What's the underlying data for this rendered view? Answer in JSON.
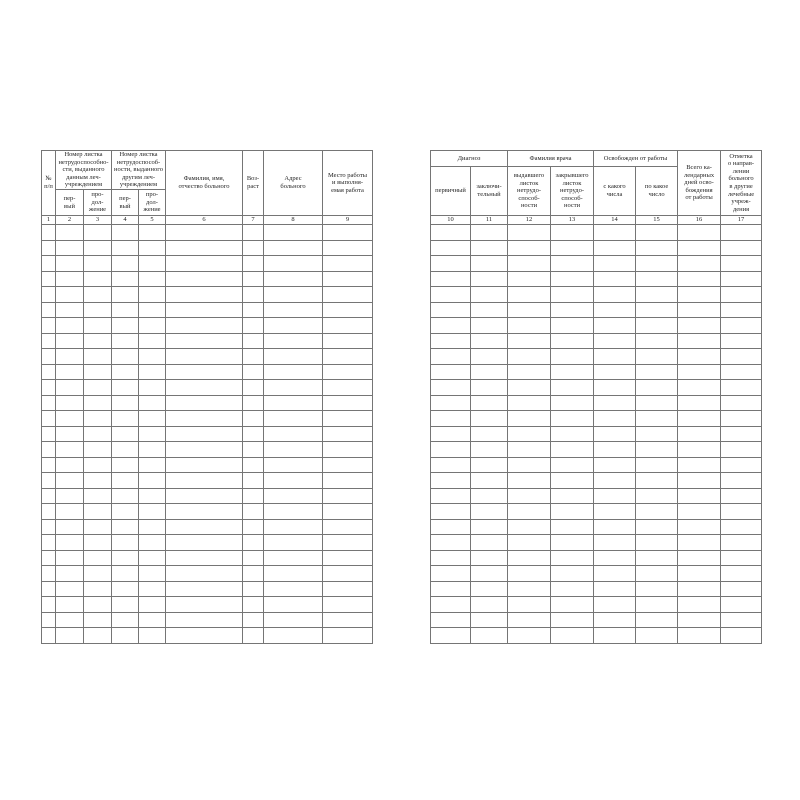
{
  "colors": {
    "page_background": "#ffffff",
    "grid_line": "#757575",
    "outer_border": "#3a3a3a",
    "text": "#1f1f1f"
  },
  "left_table": {
    "header": {
      "col1": "№\nп/п",
      "group_this_institution": "Номер листка\nнетрудоспособно-\nсти, выданного\nданным леч-\nучреждением",
      "group_other_institution": "Номер листка\nнетрудоспособ-\nности, выданного\nдругим леч-\nучреждением",
      "sub_first": "пер-\nвый",
      "sub_continuation": "про-\nдол-\nжение",
      "col6": "Фамилия, имя,\nотчество больного",
      "col7": "Воз-\nраст",
      "col8": "Адрес\nбольного",
      "col9": "Место работы\nи выполня-\nемая работа"
    },
    "column_numbers": [
      "1",
      "2",
      "3",
      "4",
      "5",
      "6",
      "7",
      "8",
      "9"
    ],
    "body_rows": 27,
    "body_cols": 9
  },
  "right_table": {
    "header": {
      "group_diagnosis": "Диагноз",
      "group_doctor": "Фамилия врача",
      "group_released": "Освобожден от работы",
      "sub_primary": "первичный",
      "sub_final": "заключи-\nтельный",
      "sub_issued": "выдавшего\nлисток\nнетрудо-\nспособ-\nности",
      "sub_closed": "закрывшего\nлисток\nнетрудо-\nспособ-\nности",
      "sub_from_date": "с какого\nчисла",
      "sub_to_date": "по какое\nчисло",
      "col16": "Всего ка-\nлендарных\nдней осво-\nбождения\nот работы",
      "col17": "Отметка\nо направ-\nлении\nбольного\nв другие\nлечебные\nучреж-\nдения"
    },
    "column_numbers": [
      "10",
      "11",
      "12",
      "13",
      "14",
      "15",
      "16",
      "17"
    ],
    "body_rows": 27,
    "body_cols": 8
  }
}
